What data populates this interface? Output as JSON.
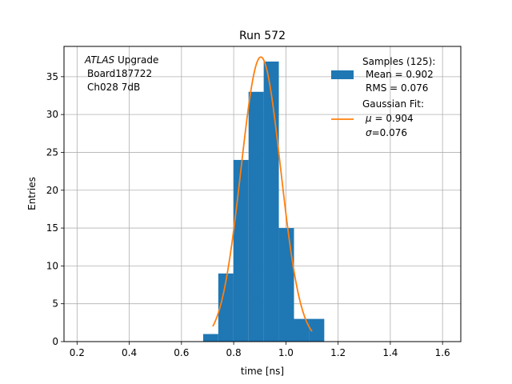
{
  "chart_data": {
    "type": "bar",
    "title": "Run 572",
    "xlabel": "time [ns]",
    "ylabel": "Entries",
    "xlim": [
      0.15,
      1.67
    ],
    "ylim": [
      0,
      39
    ],
    "xticks": [
      0.2,
      0.4,
      0.6,
      0.8,
      1.0,
      1.2,
      1.4,
      1.6
    ],
    "xtick_labels": [
      "0.2",
      "0.4",
      "0.6",
      "0.8",
      "1.0",
      "1.2",
      "1.4",
      "1.6"
    ],
    "yticks": [
      0,
      5,
      10,
      15,
      20,
      25,
      30,
      35
    ],
    "ytick_labels": [
      "0",
      "5",
      "10",
      "15",
      "20",
      "25",
      "30",
      "35"
    ],
    "grid": true,
    "bins": [
      {
        "x0": 0.683,
        "x1": 0.741,
        "count": 1
      },
      {
        "x0": 0.741,
        "x1": 0.799,
        "count": 9
      },
      {
        "x0": 0.799,
        "x1": 0.857,
        "count": 24
      },
      {
        "x0": 0.857,
        "x1": 0.915,
        "count": 33
      },
      {
        "x0": 0.915,
        "x1": 0.973,
        "count": 37
      },
      {
        "x0": 0.973,
        "x1": 1.031,
        "count": 15
      },
      {
        "x0": 1.031,
        "x1": 1.089,
        "count": 3
      },
      {
        "x0": 1.089,
        "x1": 1.147,
        "count": 3
      }
    ],
    "fit": {
      "mu": 0.904,
      "sigma": 0.076,
      "amplitude": 37.6,
      "x_from": 0.72,
      "x_to": 1.1
    },
    "hist_color": "#1f77b4",
    "fit_color": "#ff7f0e",
    "annotation_lines": [
      "Upgrade",
      "Board187722",
      "Ch028 7dB"
    ],
    "annotation_italic": "ATLAS",
    "legend": {
      "placement": "top-right",
      "samples_lines": [
        "Samples (125):",
        "Mean = 0.902",
        "RMS = 0.076"
      ],
      "fit_lines": [
        "Gaussian Fit:",
        "= 0.904",
        "=0.076"
      ],
      "mu_symbol": "μ",
      "sigma_symbol": "σ"
    }
  }
}
